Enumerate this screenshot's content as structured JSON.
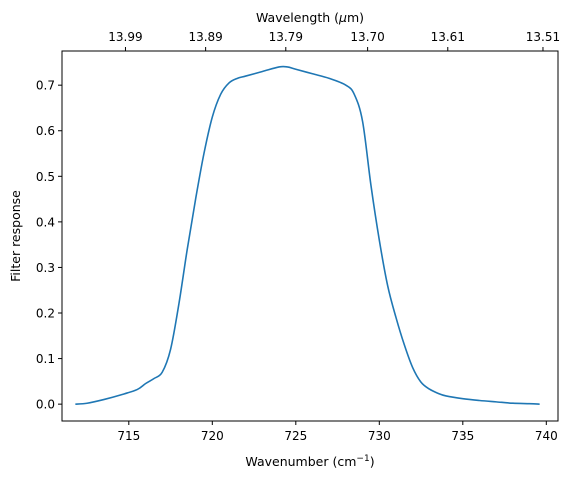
{
  "chart_data": {
    "type": "line",
    "xlabel": "Wavenumber (cm",
    "xlabel_sup": "−1",
    "xlabel_end": ")",
    "ylabel": "Filter response",
    "top_xlabel": "Wavelength (",
    "top_xlabel_mu": "μ",
    "top_xlabel_end": "m)",
    "xlim": [
      711.0,
      740.7
    ],
    "ylim": [
      -0.037,
      0.775
    ],
    "x_ticks": [
      715,
      720,
      725,
      730,
      735,
      740
    ],
    "x_tick_labels": [
      "715",
      "720",
      "725",
      "730",
      "735",
      "740"
    ],
    "y_ticks": [
      0.0,
      0.1,
      0.2,
      0.3,
      0.4,
      0.5,
      0.6,
      0.7
    ],
    "y_tick_labels": [
      "0.0",
      "0.1",
      "0.2",
      "0.3",
      "0.4",
      "0.5",
      "0.6",
      "0.7"
    ],
    "top_x_ticks": [
      714.8,
      719.6,
      724.4,
      729.3,
      734.1,
      739.8
    ],
    "top_x_tick_labels": [
      "13.99",
      "13.89",
      "13.79",
      "13.70",
      "13.61",
      "13.51"
    ],
    "grid": false,
    "series": [
      {
        "color": "#1f77b4",
        "x": [
          711.8,
          712.5,
          713.5,
          714.5,
          715.5,
          716.0,
          716.5,
          717.0,
          717.5,
          718.0,
          718.5,
          719.0,
          719.5,
          720.0,
          720.5,
          721.0,
          721.5,
          722.0,
          723.0,
          724.0,
          724.5,
          725.0,
          726.0,
          727.0,
          728.0,
          728.5,
          729.0,
          729.5,
          730.0,
          730.5,
          731.0,
          731.5,
          732.0,
          732.5,
          733.0,
          733.5,
          734.0,
          735.0,
          736.0,
          737.0,
          738.0,
          739.0,
          739.6
        ],
        "y": [
          0.0,
          0.002,
          0.01,
          0.02,
          0.032,
          0.045,
          0.056,
          0.07,
          0.12,
          0.22,
          0.34,
          0.45,
          0.55,
          0.63,
          0.68,
          0.705,
          0.715,
          0.72,
          0.73,
          0.74,
          0.74,
          0.735,
          0.725,
          0.715,
          0.7,
          0.68,
          0.62,
          0.48,
          0.36,
          0.26,
          0.19,
          0.13,
          0.08,
          0.048,
          0.033,
          0.024,
          0.018,
          0.012,
          0.008,
          0.005,
          0.002,
          0.001,
          0.0
        ]
      }
    ]
  }
}
